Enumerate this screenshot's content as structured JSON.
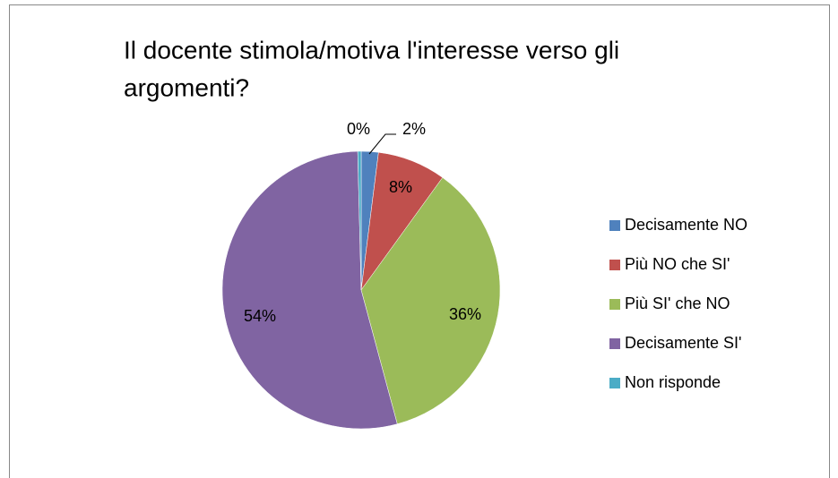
{
  "chart_data": {
    "type": "pie",
    "title_lines": [
      "Il docente stimola/motiva l'interesse verso gli",
      "argomenti?"
    ],
    "categories": [
      "Decisamente NO",
      "Più NO che SI'",
      "Più SI' che NO",
      "Decisamente SI'",
      "Non risponde"
    ],
    "values": [
      2,
      8,
      36,
      54,
      0.4
    ],
    "value_labels": [
      "2%",
      "8%",
      "36%",
      "54%",
      "0%"
    ],
    "colors": [
      "#4f81bd",
      "#c0504d",
      "#9bbb59",
      "#8064a2",
      "#4bacc6"
    ],
    "legend": "right"
  }
}
